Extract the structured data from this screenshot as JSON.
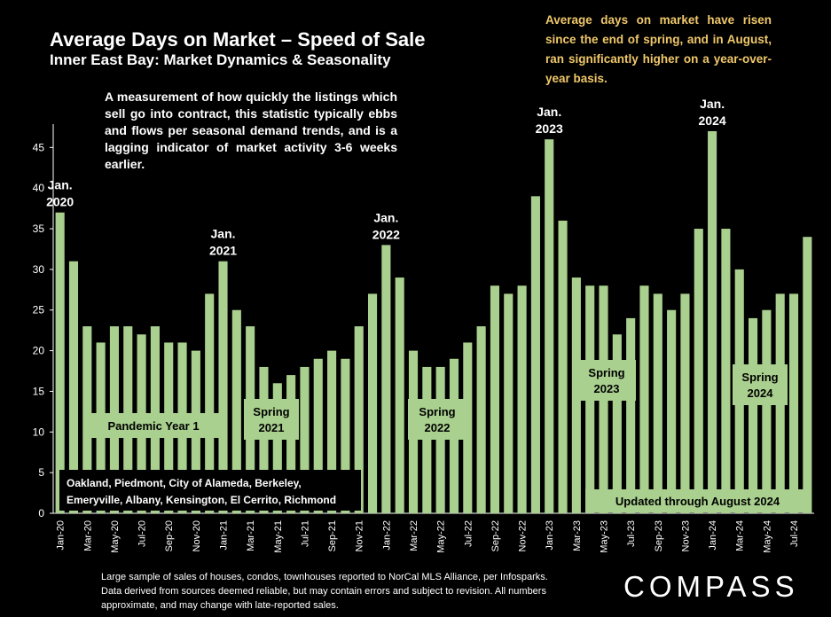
{
  "chart_data": {
    "type": "bar",
    "title": "Average Days on Market – Speed of Sale",
    "subtitle": "Inner East Bay: Market Dynamics & Seasonality",
    "description": "A measurement of how quickly the listings which sell go into contract, this statistic typically ebbs and flows per seasonal demand trends, and is a lagging indicator of market activity 3-6 weeks earlier.",
    "note": "Average days on market have risen since the end of spring, and in August, ran significantly higher on a year-over-year basis.",
    "ylim": [
      0,
      47
    ],
    "yticks": [
      0,
      5,
      10,
      15,
      20,
      25,
      30,
      35,
      40,
      45
    ],
    "bar_color": "#a9d08e",
    "x_labels": [
      "Jan-20",
      "Mar-20",
      "May-20",
      "Jul-20",
      "Sep-20",
      "Nov-20",
      "Jan-21",
      "Mar-21",
      "May-21",
      "Jul-21",
      "Sep-21",
      "Nov-21",
      "Jan-22",
      "Mar-22",
      "May-22",
      "Jul-22",
      "Sep-22",
      "Nov-22",
      "Jan-23",
      "Mar-23",
      "May-23",
      "Jul-23",
      "Sep-23",
      "Nov-23",
      "Jan-24",
      "Mar-24",
      "May-24",
      "Jul-24"
    ],
    "values": [
      37,
      31,
      23,
      21,
      23,
      23,
      22,
      23,
      21,
      21,
      20,
      27,
      31,
      25,
      23,
      18,
      16,
      17,
      18,
      19,
      20,
      19,
      23,
      27,
      33,
      29,
      20,
      18,
      18,
      19,
      21,
      23,
      28,
      27,
      28,
      39,
      46,
      36,
      29,
      28,
      28,
      22,
      24,
      28,
      27,
      25,
      27,
      35,
      47,
      35,
      30,
      24,
      25,
      27,
      27,
      34
    ],
    "year_labels": [
      {
        "index": 0,
        "text": "Jan.\n2020"
      },
      {
        "index": 12,
        "text": "Jan.\n2021"
      },
      {
        "index": 24,
        "text": "Jan.\n2022"
      },
      {
        "index": 36,
        "text": "Jan.\n2023"
      },
      {
        "index": 48,
        "text": "Jan.\n2024"
      }
    ],
    "annotations": {
      "pandemic": "Pandemic Year 1",
      "spring2021": "Spring\n2021",
      "spring2022": "Spring\n2022",
      "spring2023": "Spring\n2023",
      "spring2024": "Spring\n2024",
      "updated": "Updated through August 2024",
      "cities": "Oakland, Piedmont, City of Alameda, Berkeley,\nEmeryville, Albany, Kensington, El Cerrito, Richmond"
    }
  },
  "footer": "Large sample of sales of houses, condos, townhouses reported to NorCal MLS Alliance, per Infosparks. Data derived from sources deemed reliable, but may contain errors and subject to revision. All numbers approximate, and may change with late-reported sales.",
  "brand": "COMPASS"
}
